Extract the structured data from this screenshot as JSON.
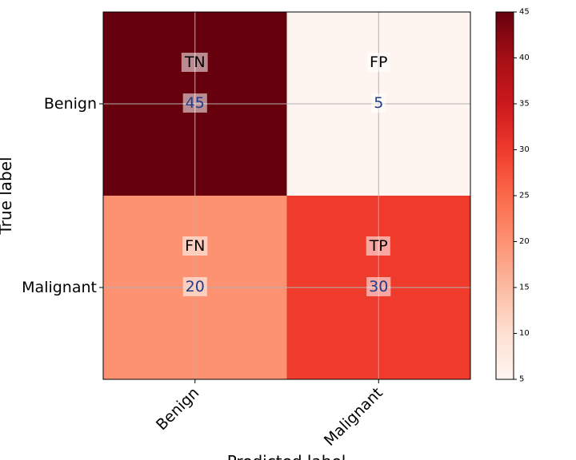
{
  "chart_data": {
    "type": "heatmap",
    "xlabel": "Predicted label",
    "ylabel": "True label",
    "x_categories": [
      "Benign",
      "Malignant"
    ],
    "y_categories": [
      "Benign",
      "Malignant"
    ],
    "matrix": [
      [
        45,
        5
      ],
      [
        20,
        30
      ]
    ],
    "cell_labels": [
      [
        "TN",
        "FP"
      ],
      [
        "FN",
        "TP"
      ]
    ],
    "colormap": "Reds",
    "colorbar": {
      "min": 5,
      "max": 45,
      "ticks": [
        5,
        10,
        15,
        20,
        25,
        30,
        35,
        40,
        45
      ]
    },
    "grid": true,
    "value_color": "#1f3d8a"
  }
}
